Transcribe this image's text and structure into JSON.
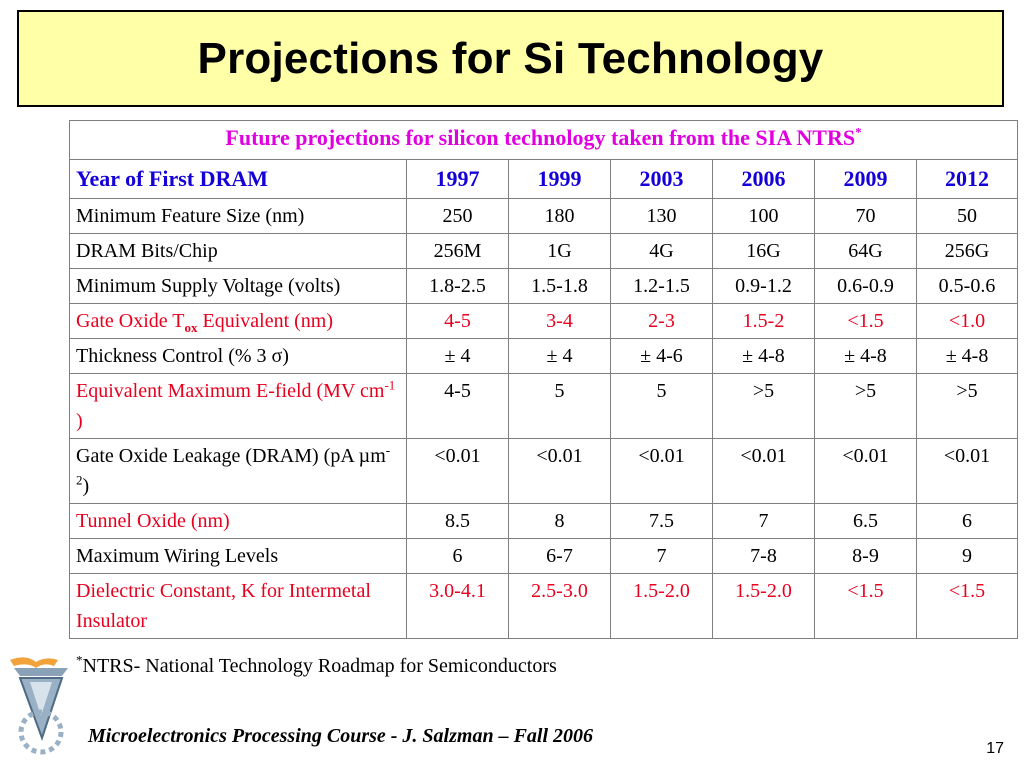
{
  "title": "Projections for Si Technology",
  "table": {
    "caption": "Future projections for silicon technology taken from the SIA NTRS",
    "caption_sup": "*",
    "header_label": "Year of First DRAM",
    "years": [
      "1997",
      "1999",
      "2003",
      "2006",
      "2009",
      "2012"
    ],
    "rows": [
      {
        "label": "Minimum Feature Size (nm)",
        "values": [
          "250",
          "180",
          "130",
          "100",
          "70",
          "50"
        ]
      },
      {
        "label": "DRAM Bits/Chip",
        "values": [
          "256M",
          "1G",
          "4G",
          "16G",
          "64G",
          "256G"
        ]
      },
      {
        "label": "Minimum Supply Voltage (volts)",
        "values": [
          "1.8-2.5",
          "1.5-1.8",
          "1.2-1.5",
          "0.9-1.2",
          "0.6-0.9",
          "0.5-0.6"
        ]
      },
      {
        "label_a": "Gate Oxide T",
        "label_sub": "ox",
        "label_b": " Equivalent (nm)",
        "values": [
          "4-5",
          "3-4",
          "2-3",
          "1.5-2",
          "<1.5",
          "<1.0"
        ]
      },
      {
        "label": "Thickness Control (% 3 σ)",
        "values": [
          "± 4",
          "± 4",
          "± 4-6",
          "± 4-8",
          "± 4-8",
          "± 4-8"
        ]
      },
      {
        "label_a": "Equivalent Maximum E-field (MV cm",
        "label_sup": "-1",
        "label_b": " )",
        "values": [
          "4-5",
          "5",
          "5",
          ">5",
          ">5",
          ">5"
        ]
      },
      {
        "label_a": "Gate Oxide Leakage (DRAM) (pA µm",
        "label_sup": "-2",
        "label_b": ")",
        "values": [
          "<0.01",
          "<0.01",
          "<0.01",
          "<0.01",
          "<0.01",
          "<0.01"
        ]
      },
      {
        "label": "Tunnel Oxide (nm)",
        "values": [
          "8.5",
          "8",
          "7.5",
          "7",
          "6.5",
          "6"
        ]
      },
      {
        "label": "Maximum Wiring Levels",
        "values": [
          "6",
          "6-7",
          "7",
          "7-8",
          "8-9",
          "9"
        ]
      },
      {
        "label": "Dielectric Constant, K for Intermetal Insulator",
        "values": [
          "3.0-4.1",
          "2.5-3.0",
          "1.5-2.0",
          "1.5-2.0",
          "<1.5",
          "<1.5"
        ]
      }
    ]
  },
  "footnote": {
    "sup": "*",
    "text": "NTRS- National Technology Roadmap for Semiconductors"
  },
  "footer": "Microelectronics Processing Course - J. Salzman – Fall 2006",
  "page_number": "17",
  "colors": {
    "title_bg": "#ffffa8",
    "caption": "#e000e0",
    "header": "#1400d8",
    "highlight_row": "#e8001e"
  }
}
